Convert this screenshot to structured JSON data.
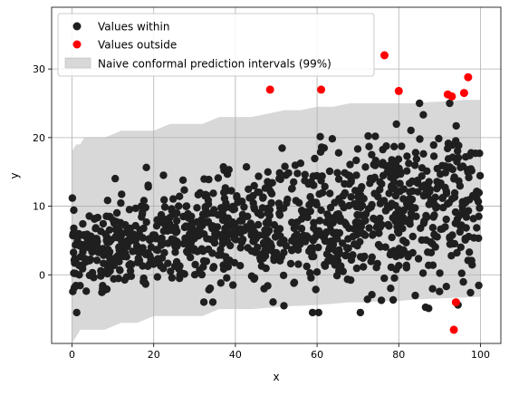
{
  "chart_data": {
    "type": "scatter",
    "title": "",
    "xlabel": "x",
    "ylabel": "y",
    "xlim": [
      -5,
      105
    ],
    "ylim": [
      -10,
      39
    ],
    "grid": true,
    "legend_position": "top-left",
    "x_ticks": [
      0,
      20,
      40,
      60,
      80,
      100
    ],
    "x_tick_labels": [
      "0",
      "20",
      "40",
      "60",
      "80",
      "100"
    ],
    "y_ticks": [
      0,
      10,
      20,
      30
    ],
    "y_tick_labels": [
      "0",
      "10",
      "20",
      "30"
    ],
    "legend": [
      {
        "label": "Values within",
        "kind": "marker",
        "color": "#1f1f1f"
      },
      {
        "label": "Values outside",
        "kind": "marker",
        "color": "#ff0000"
      },
      {
        "label": "Naive conformal prediction intervals (99%)",
        "kind": "patch",
        "color": "#d8d8d8"
      }
    ],
    "band": {
      "x": [
        0,
        1,
        2,
        3,
        5,
        8,
        12,
        16,
        20,
        24,
        28,
        32,
        36,
        40,
        44,
        48,
        52,
        56,
        60,
        64,
        68,
        72,
        76,
        80,
        84,
        88,
        92,
        96,
        100
      ],
      "lower": [
        -10,
        -9,
        -8,
        -8,
        -8,
        -8,
        -7,
        -7,
        -6,
        -6,
        -6,
        -6,
        -5,
        -5,
        -5,
        -4.8,
        -4.6,
        -4.5,
        -4.4,
        -4.2,
        -4.0,
        -4.0,
        -3.8,
        -3.8,
        -3.6,
        -3.5,
        -3.4,
        -3.3,
        -3.2
      ],
      "upper": [
        18,
        19,
        19,
        20,
        20,
        20,
        21,
        21,
        21,
        22,
        22,
        22,
        23,
        23,
        23,
        23.5,
        24,
        24,
        24.5,
        24.5,
        25,
        25,
        25,
        25,
        25,
        25.2,
        25.3,
        25.5,
        25.5
      ]
    },
    "series": [
      {
        "name": "Values outside",
        "color": "#ff0000",
        "x": [
          48.5,
          61.0,
          76.5,
          80.0,
          92.0,
          93.0,
          93.5,
          94.0,
          96.0,
          97.0
        ],
        "y": [
          27.0,
          27.0,
          32.0,
          26.8,
          26.3,
          26.0,
          -8.0,
          -4.0,
          26.5,
          28.8
        ]
      }
    ],
    "within_cloud": {
      "name": "Values within",
      "color": "#1f1f1f",
      "count": 1100,
      "description_of_trend": "mean rises roughly from 3 at x=0 to 11 at x=100 with spread growing from about 3 to 6"
    }
  }
}
